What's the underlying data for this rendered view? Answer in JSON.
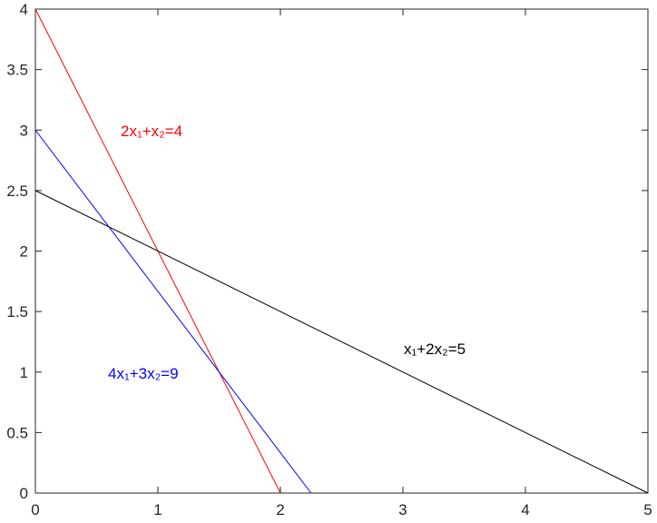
{
  "chart_data": {
    "type": "line",
    "series": [
      {
        "name": "2x₁+x₂=4",
        "color": "#ff0000",
        "x": [
          0,
          2
        ],
        "values": [
          4,
          0
        ]
      },
      {
        "name": "4x₁+3x₂=9",
        "color": "#0000ff",
        "x": [
          0,
          2.25
        ],
        "values": [
          3,
          0
        ]
      },
      {
        "name": "x₁+2x₂=5",
        "color": "#000000",
        "x": [
          0,
          5
        ],
        "values": [
          2.5,
          0
        ]
      }
    ],
    "xlim": [
      0,
      5
    ],
    "xticks": [
      0,
      1,
      2,
      3,
      4,
      5
    ],
    "ylim": [
      0,
      4
    ],
    "yticks": [
      0,
      0.5,
      1,
      1.5,
      2,
      2.5,
      3,
      3.5,
      4
    ]
  }
}
